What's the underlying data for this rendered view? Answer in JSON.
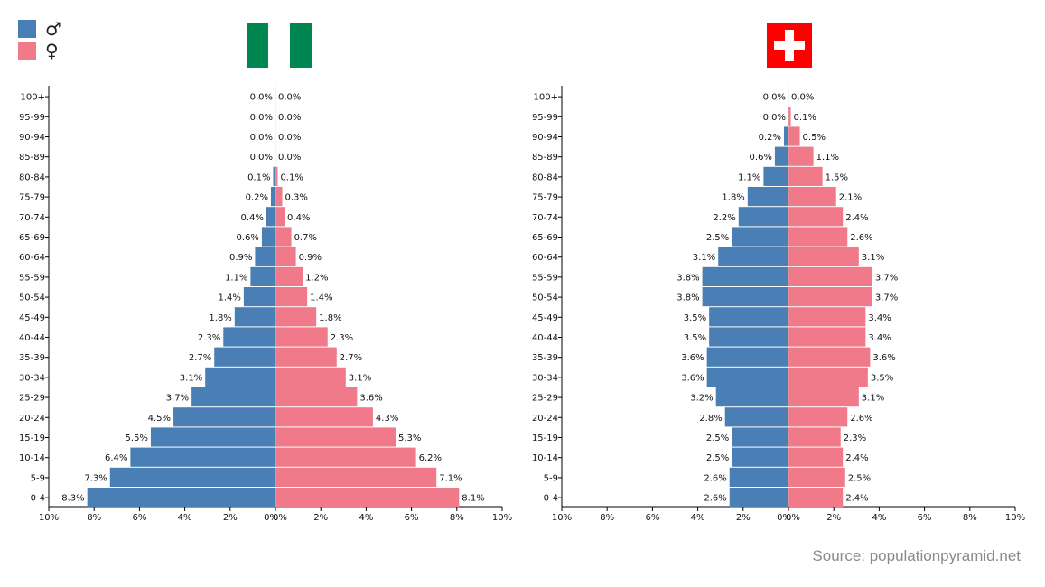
{
  "legend": {
    "male_symbol": "♂",
    "female_symbol": "♀",
    "male_color": "#4a7fb5",
    "female_color": "#f07a89"
  },
  "source_text": "Source: populationpyramid.net",
  "flags": [
    {
      "country_flag": "nigeria-flag",
      "colors": [
        "#008751",
        "#ffffff",
        "#008751"
      ]
    },
    {
      "country_flag": "switzerland-flag",
      "colors": [
        "#ff0000",
        "#ffffff"
      ]
    }
  ],
  "chart_data": [
    {
      "type": "bar",
      "orientation": "horizontal-pyramid",
      "categories": [
        "100+",
        "95-99",
        "90-94",
        "85-89",
        "80-84",
        "75-79",
        "70-74",
        "65-69",
        "60-64",
        "55-59",
        "50-54",
        "45-49",
        "40-44",
        "35-39",
        "30-34",
        "25-29",
        "20-24",
        "15-19",
        "10-14",
        "5-9",
        "0-4"
      ],
      "series": [
        {
          "name": "♂",
          "color": "#4a7fb5",
          "values": [
            0.0,
            0.0,
            0.0,
            0.0,
            0.1,
            0.2,
            0.4,
            0.6,
            0.9,
            1.1,
            1.4,
            1.8,
            2.3,
            2.7,
            3.1,
            3.7,
            4.5,
            5.5,
            6.4,
            7.3,
            8.3
          ],
          "labels": [
            "0.0%",
            "0.0%",
            "0.0%",
            "0.0%",
            "0.1%",
            "0.2%",
            "0.4%",
            "0.6%",
            "0.9%",
            "1.1%",
            "1.4%",
            "1.8%",
            "2.3%",
            "2.7%",
            "3.1%",
            "3.7%",
            "4.5%",
            "5.5%",
            "6.4%",
            "7.3%",
            "8.3%"
          ]
        },
        {
          "name": "♀",
          "color": "#f07a89",
          "values": [
            0.0,
            0.0,
            0.0,
            0.0,
            0.1,
            0.3,
            0.4,
            0.7,
            0.9,
            1.2,
            1.4,
            1.8,
            2.3,
            2.7,
            3.1,
            3.6,
            4.3,
            5.3,
            6.2,
            7.1,
            8.1
          ],
          "labels": [
            "0.0%",
            "0.0%",
            "0.0%",
            "0.0%",
            "0.1%",
            "0.3%",
            "0.4%",
            "0.7%",
            "0.9%",
            "1.2%",
            "1.4%",
            "1.8%",
            "2.3%",
            "2.7%",
            "3.1%",
            "3.6%",
            "4.3%",
            "5.3%",
            "6.2%",
            "7.1%",
            "8.1%"
          ]
        }
      ],
      "xlim": [
        -10,
        10
      ],
      "xticks": [
        "10%",
        "8%",
        "6%",
        "4%",
        "2%",
        "0%",
        "0%",
        "2%",
        "4%",
        "6%",
        "8%",
        "10%"
      ]
    },
    {
      "type": "bar",
      "orientation": "horizontal-pyramid",
      "categories": [
        "100+",
        "95-99",
        "90-94",
        "85-89",
        "80-84",
        "75-79",
        "70-74",
        "65-69",
        "60-64",
        "55-59",
        "50-54",
        "45-49",
        "40-44",
        "35-39",
        "30-34",
        "25-29",
        "20-24",
        "15-19",
        "10-14",
        "5-9",
        "0-4"
      ],
      "series": [
        {
          "name": "♂",
          "color": "#4a7fb5",
          "values": [
            0.0,
            0.0,
            0.2,
            0.6,
            1.1,
            1.8,
            2.2,
            2.5,
            3.1,
            3.8,
            3.8,
            3.5,
            3.5,
            3.6,
            3.6,
            3.2,
            2.8,
            2.5,
            2.5,
            2.6,
            2.6
          ],
          "labels": [
            "0.0%",
            "0.0%",
            "0.2%",
            "0.6%",
            "1.1%",
            "1.8%",
            "2.2%",
            "2.5%",
            "3.1%",
            "3.8%",
            "3.8%",
            "3.5%",
            "3.5%",
            "3.6%",
            "3.6%",
            "3.2%",
            "2.8%",
            "2.5%",
            "2.5%",
            "2.6%",
            "2.6%"
          ]
        },
        {
          "name": "♀",
          "color": "#f07a89",
          "values": [
            0.0,
            0.1,
            0.5,
            1.1,
            1.5,
            2.1,
            2.4,
            2.6,
            3.1,
            3.7,
            3.7,
            3.4,
            3.4,
            3.6,
            3.5,
            3.1,
            2.6,
            2.3,
            2.4,
            2.5,
            2.4
          ],
          "labels": [
            "0.0%",
            "0.1%",
            "0.5%",
            "1.1%",
            "1.5%",
            "2.1%",
            "2.4%",
            "2.6%",
            "3.1%",
            "3.7%",
            "3.7%",
            "3.4%",
            "3.4%",
            "3.6%",
            "3.5%",
            "3.1%",
            "2.6%",
            "2.3%",
            "2.4%",
            "2.5%",
            "2.4%"
          ]
        }
      ],
      "xlim": [
        -10,
        10
      ],
      "xticks": [
        "10%",
        "8%",
        "6%",
        "4%",
        "2%",
        "0%",
        "0%",
        "2%",
        "4%",
        "6%",
        "8%",
        "10%"
      ]
    }
  ]
}
